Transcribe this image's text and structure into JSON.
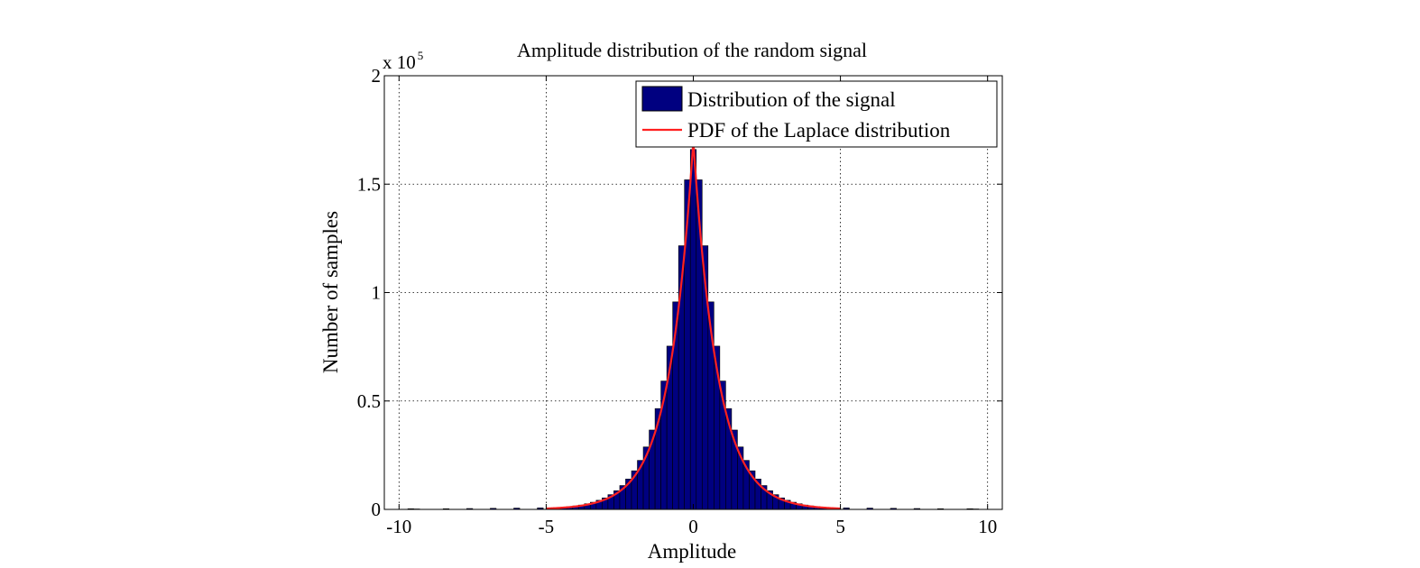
{
  "chart_data": {
    "type": "bar",
    "title": "Amplitude distribution of the random signal",
    "xlabel": "Amplitude",
    "ylabel": "Number of samples",
    "xlim": [
      -10.5,
      10.5
    ],
    "ylim": [
      0,
      200000
    ],
    "y_multiplier_label": "x 10",
    "y_multiplier_exponent": "5",
    "xticks": [
      -10,
      -5,
      0,
      5,
      10
    ],
    "xtick_labels": [
      "-10",
      "-5",
      "0",
      "5",
      "10"
    ],
    "yticks": [
      0,
      50000,
      100000,
      150000,
      200000
    ],
    "ytick_labels": [
      "0",
      "0.5",
      "1",
      "1.5",
      "2"
    ],
    "grid": true,
    "legend_position": "top-right",
    "bin_width": 0.2,
    "series": [
      {
        "name": "Distribution of the signal",
        "kind": "histogram",
        "color": "#000080",
        "edge_color": "#000000",
        "x": [
          -9.6,
          -9.4,
          -8.4,
          -7.6,
          -6.8,
          -6.0,
          -5.2,
          -4.6,
          -4.4,
          -4.2,
          -4.0,
          -3.8,
          -3.6,
          -3.4,
          -3.2,
          -3.0,
          -2.8,
          -2.6,
          -2.4,
          -2.2,
          -2.0,
          -1.8,
          -1.6,
          -1.4,
          -1.2,
          -1.0,
          -0.8,
          -0.6,
          -0.4,
          -0.2,
          0.0,
          0.2,
          0.4,
          0.6,
          0.8,
          1.0,
          1.2,
          1.4,
          1.6,
          1.8,
          2.0,
          2.2,
          2.4,
          2.6,
          2.8,
          3.0,
          3.2,
          3.4,
          3.6,
          3.8,
          4.0,
          4.2,
          4.4,
          4.6,
          5.2,
          6.0,
          6.8,
          7.6,
          8.4,
          9.4,
          9.6
        ],
        "values": [
          300,
          200,
          300,
          400,
          500,
          600,
          700,
          800,
          1000,
          1300,
          1600,
          2000,
          2600,
          3300,
          4200,
          5300,
          6800,
          8600,
          11000,
          14000,
          17800,
          22600,
          28800,
          36600,
          46500,
          59200,
          75300,
          95700,
          121600,
          152000,
          166000,
          152000,
          121600,
          95700,
          75300,
          59200,
          46500,
          36600,
          28800,
          22600,
          17800,
          14000,
          11000,
          8600,
          6800,
          5300,
          4200,
          3300,
          2600,
          2000,
          1600,
          1300,
          1000,
          800,
          700,
          600,
          500,
          400,
          300,
          300,
          200
        ]
      },
      {
        "name": "PDF of the Laplace distribution",
        "kind": "line",
        "color": "#ff2020",
        "peak": 170000,
        "scale_b": 0.83
      }
    ]
  }
}
